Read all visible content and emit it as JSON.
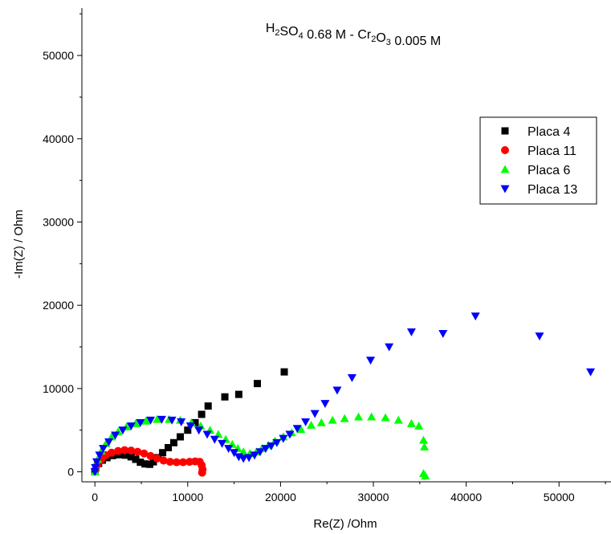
{
  "chart_data": {
    "type": "scatter",
    "title": {
      "parts": [
        {
          "t": "H",
          "sub": false
        },
        {
          "t": "2",
          "sub": true
        },
        {
          "t": "SO",
          "sub": false
        },
        {
          "t": "4",
          "sub": true
        },
        {
          "t": " 0.68 M - Cr",
          "sub": false
        },
        {
          "t": "2",
          "sub": true
        },
        {
          "t": "O",
          "sub": false
        },
        {
          "t": "3",
          "sub": true
        },
        {
          "t": " 0.005 M",
          "sub": false
        }
      ]
    },
    "xlabel": "Re(Z) /Ohm",
    "ylabel": "-Im(Z) / Ohm",
    "xlim": [
      -1400,
      55600
    ],
    "ylim": [
      -1200,
      55700
    ],
    "xticks": [
      0,
      10000,
      20000,
      30000,
      40000,
      50000
    ],
    "yticks": [
      0,
      10000,
      20000,
      30000,
      40000,
      50000
    ],
    "legend_position": "top-right",
    "series": [
      {
        "name": "Placa 4",
        "marker": "square",
        "color": "#000000",
        "points": [
          [
            0,
            0
          ],
          [
            120,
            500
          ],
          [
            400,
            1000
          ],
          [
            800,
            1400
          ],
          [
            1300,
            1700
          ],
          [
            1900,
            1950
          ],
          [
            2600,
            2050
          ],
          [
            3300,
            2000
          ],
          [
            3900,
            1800
          ],
          [
            4400,
            1500
          ],
          [
            4900,
            1150
          ],
          [
            5400,
            950
          ],
          [
            5900,
            900
          ],
          [
            6300,
            1200
          ],
          [
            6800,
            1700
          ],
          [
            7300,
            2300
          ],
          [
            7900,
            2900
          ],
          [
            8500,
            3500
          ],
          [
            9200,
            4200
          ],
          [
            10000,
            5000
          ],
          [
            10800,
            5900
          ],
          [
            11500,
            6900
          ],
          [
            12200,
            7900
          ],
          [
            14000,
            9000
          ],
          [
            15500,
            9300
          ],
          [
            17500,
            10600
          ],
          [
            20400,
            12000
          ]
        ]
      },
      {
        "name": "Placa 11",
        "marker": "circle",
        "color": "#ff0000",
        "points": [
          [
            80,
            300
          ],
          [
            300,
            900
          ],
          [
            700,
            1500
          ],
          [
            1200,
            2000
          ],
          [
            1800,
            2300
          ],
          [
            2500,
            2500
          ],
          [
            3200,
            2600
          ],
          [
            3900,
            2550
          ],
          [
            4600,
            2400
          ],
          [
            5300,
            2200
          ],
          [
            6000,
            1900
          ],
          [
            6700,
            1600
          ],
          [
            7400,
            1350
          ],
          [
            8100,
            1200
          ],
          [
            8800,
            1150
          ],
          [
            9500,
            1150
          ],
          [
            10200,
            1200
          ],
          [
            10800,
            1250
          ],
          [
            11300,
            1200
          ],
          [
            11500,
            800
          ],
          [
            11600,
            300
          ],
          [
            11550,
            -100
          ]
        ]
      },
      {
        "name": "Placa 6",
        "marker": "triangle-up",
        "color": "#00ff00",
        "points": [
          [
            0,
            0
          ],
          [
            80,
            600
          ],
          [
            300,
            1500
          ],
          [
            700,
            2500
          ],
          [
            1200,
            3400
          ],
          [
            1800,
            4200
          ],
          [
            2500,
            4800
          ],
          [
            3400,
            5400
          ],
          [
            4400,
            5800
          ],
          [
            5500,
            6100
          ],
          [
            6700,
            6300
          ],
          [
            8000,
            6300
          ],
          [
            9200,
            6200
          ],
          [
            10400,
            5900
          ],
          [
            11400,
            5500
          ],
          [
            12400,
            5000
          ],
          [
            13300,
            4500
          ],
          [
            14100,
            3900
          ],
          [
            14800,
            3300
          ],
          [
            15400,
            2800
          ],
          [
            16000,
            2400
          ],
          [
            16700,
            2200
          ],
          [
            17400,
            2400
          ],
          [
            18000,
            2800
          ],
          [
            18700,
            3200
          ],
          [
            19400,
            3700
          ],
          [
            20300,
            4200
          ],
          [
            21200,
            4700
          ],
          [
            22200,
            5100
          ],
          [
            23300,
            5600
          ],
          [
            24400,
            5900
          ],
          [
            25600,
            6200
          ],
          [
            26900,
            6400
          ],
          [
            28400,
            6600
          ],
          [
            29800,
            6600
          ],
          [
            31300,
            6500
          ],
          [
            32700,
            6200
          ],
          [
            34100,
            5800
          ],
          [
            34900,
            5500
          ],
          [
            35400,
            3800
          ],
          [
            35500,
            3000
          ],
          [
            35400,
            -200
          ],
          [
            35600,
            -500
          ]
        ]
      },
      {
        "name": "Placa 13",
        "marker": "triangle-down",
        "color": "#0000ff",
        "points": [
          [
            0,
            0
          ],
          [
            50,
            500
          ],
          [
            200,
            1200
          ],
          [
            500,
            2000
          ],
          [
            900,
            2800
          ],
          [
            1500,
            3600
          ],
          [
            2200,
            4400
          ],
          [
            3000,
            5000
          ],
          [
            3900,
            5500
          ],
          [
            4900,
            5900
          ],
          [
            6000,
            6200
          ],
          [
            7200,
            6300
          ],
          [
            8300,
            6200
          ],
          [
            9300,
            6000
          ],
          [
            10300,
            5500
          ],
          [
            11200,
            5000
          ],
          [
            12100,
            4500
          ],
          [
            12900,
            3900
          ],
          [
            13700,
            3400
          ],
          [
            14400,
            2800
          ],
          [
            15000,
            2300
          ],
          [
            15500,
            1800
          ],
          [
            16000,
            1600
          ],
          [
            16600,
            1700
          ],
          [
            17200,
            2000
          ],
          [
            17800,
            2400
          ],
          [
            18400,
            2800
          ],
          [
            19000,
            3100
          ],
          [
            19600,
            3500
          ],
          [
            20300,
            4000
          ],
          [
            21000,
            4500
          ],
          [
            21800,
            5200
          ],
          [
            22700,
            6000
          ],
          [
            23700,
            7000
          ],
          [
            24800,
            8200
          ],
          [
            26100,
            9800
          ],
          [
            27700,
            11300
          ],
          [
            29700,
            13400
          ],
          [
            31700,
            15000
          ],
          [
            34100,
            16800
          ],
          [
            37500,
            16600
          ],
          [
            41000,
            18700
          ],
          [
            47900,
            16300
          ],
          [
            53400,
            12000
          ]
        ]
      }
    ]
  }
}
